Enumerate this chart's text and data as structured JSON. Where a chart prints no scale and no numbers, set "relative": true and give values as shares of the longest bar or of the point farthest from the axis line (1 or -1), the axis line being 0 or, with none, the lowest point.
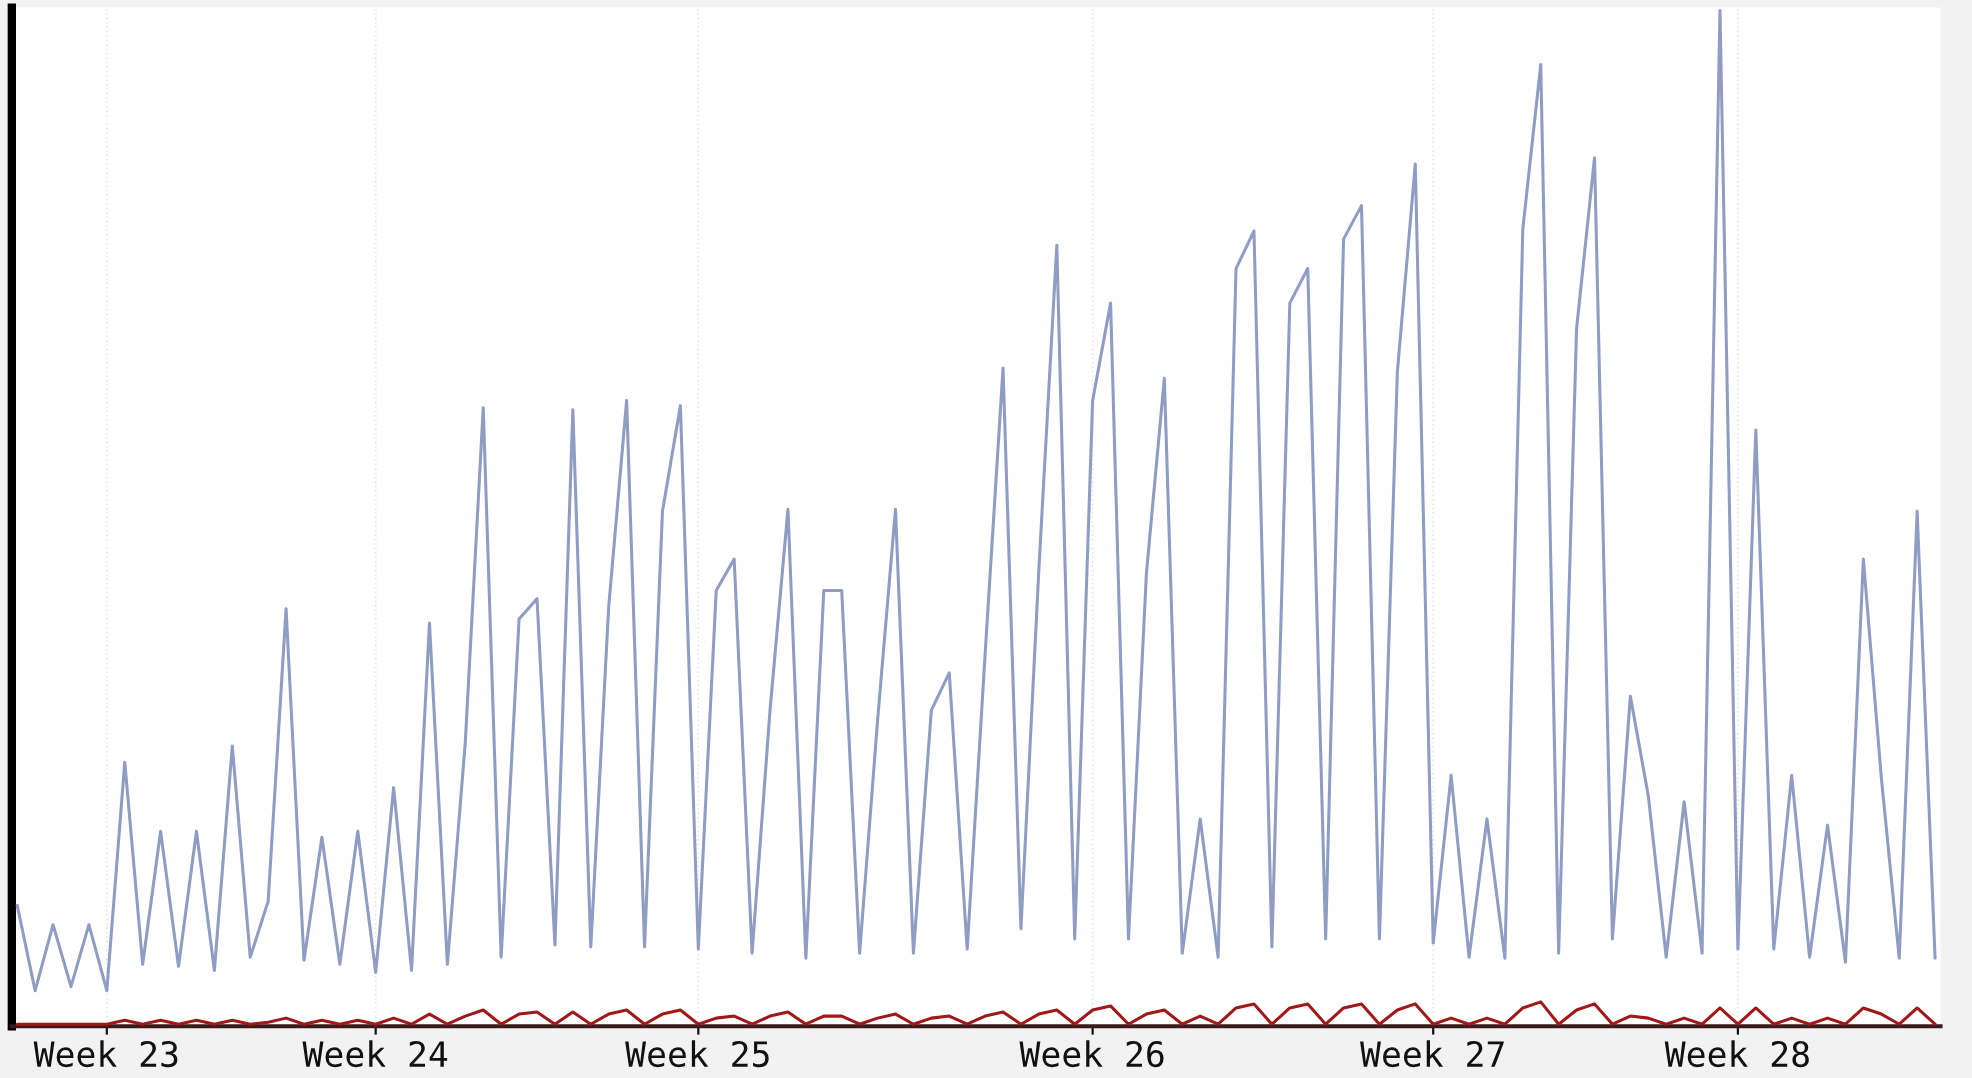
{
  "chart_data": {
    "type": "line",
    "relative": true,
    "grid": true,
    "categories": [
      null,
      null,
      null,
      null,
      null,
      "Week 23",
      null,
      null,
      null,
      null,
      null,
      null,
      null,
      null,
      null,
      null,
      null,
      null,
      null,
      null,
      "Week 24",
      null,
      null,
      null,
      null,
      null,
      null,
      null,
      null,
      null,
      null,
      null,
      null,
      null,
      null,
      null,
      null,
      null,
      "Week 25",
      null,
      null,
      null,
      null,
      null,
      null,
      null,
      null,
      null,
      null,
      null,
      null,
      null,
      null,
      null,
      null,
      null,
      null,
      null,
      null,
      null,
      "Week 26",
      null,
      null,
      null,
      null,
      null,
      null,
      null,
      null,
      null,
      null,
      null,
      null,
      null,
      null,
      null,
      null,
      null,
      null,
      "Week 27",
      null,
      null,
      null,
      null,
      null,
      null,
      null,
      null,
      null,
      null,
      null,
      null,
      null,
      null,
      null,
      null,
      "Week 28",
      null,
      null,
      null,
      null,
      null,
      null,
      null,
      null,
      null,
      null,
      null
    ],
    "series": [
      {
        "color": "#8f9cc4",
        "values": [
          0.119,
          0.035,
          0.1,
          0.039,
          0.1,
          0.035,
          0.26,
          0.061,
          0.192,
          0.059,
          0.192,
          0.055,
          0.276,
          0.068,
          0.123,
          0.411,
          0.065,
          0.186,
          0.061,
          0.192,
          0.053,
          0.235,
          0.055,
          0.397,
          0.061,
          0.28,
          0.609,
          0.068,
          0.401,
          0.421,
          0.08,
          0.607,
          0.078,
          0.413,
          0.616,
          0.078,
          0.507,
          0.611,
          0.076,
          0.429,
          0.46,
          0.072,
          0.311,
          0.509,
          0.067,
          0.429,
          0.429,
          0.072,
          0.301,
          0.509,
          0.072,
          0.311,
          0.348,
          0.076,
          0.366,
          0.648,
          0.096,
          0.45,
          0.769,
          0.086,
          0.616,
          0.712,
          0.086,
          0.446,
          0.638,
          0.072,
          0.204,
          0.068,
          0.746,
          0.783,
          0.078,
          0.712,
          0.746,
          0.086,
          0.775,
          0.808,
          0.086,
          0.644,
          0.849,
          0.082,
          0.247,
          0.068,
          0.204,
          0.067,
          0.785,
          0.947,
          0.072,
          0.687,
          0.855,
          0.086,
          0.325,
          0.227,
          0.068,
          0.221,
          0.072,
          1.0,
          0.076,
          0.587,
          0.076,
          0.247,
          0.068,
          0.198,
          0.063,
          0.46,
          0.245,
          0.067,
          0.507,
          0.067
        ]
      },
      {
        "color": "#a01818",
        "values": [
          0.002,
          0.002,
          0.002,
          0.002,
          0.002,
          0.002,
          0.006,
          0.002,
          0.006,
          0.002,
          0.006,
          0.002,
          0.006,
          0.002,
          0.004,
          0.008,
          0.002,
          0.006,
          0.002,
          0.006,
          0.002,
          0.008,
          0.002,
          0.012,
          0.002,
          0.01,
          0.016,
          0.002,
          0.012,
          0.014,
          0.002,
          0.014,
          0.002,
          0.012,
          0.016,
          0.002,
          0.012,
          0.016,
          0.002,
          0.008,
          0.01,
          0.002,
          0.01,
          0.014,
          0.002,
          0.01,
          0.01,
          0.002,
          0.008,
          0.012,
          0.002,
          0.008,
          0.01,
          0.002,
          0.01,
          0.014,
          0.002,
          0.012,
          0.016,
          0.002,
          0.016,
          0.02,
          0.002,
          0.012,
          0.016,
          0.002,
          0.01,
          0.002,
          0.018,
          0.022,
          0.002,
          0.018,
          0.022,
          0.002,
          0.018,
          0.022,
          0.002,
          0.016,
          0.022,
          0.002,
          0.008,
          0.002,
          0.008,
          0.002,
          0.018,
          0.024,
          0.002,
          0.016,
          0.022,
          0.002,
          0.01,
          0.008,
          0.002,
          0.008,
          0.002,
          0.018,
          0.002,
          0.018,
          0.002,
          0.008,
          0.002,
          0.008,
          0.002,
          0.018,
          0.012,
          0.002,
          0.018,
          0.002
        ]
      }
    ]
  }
}
